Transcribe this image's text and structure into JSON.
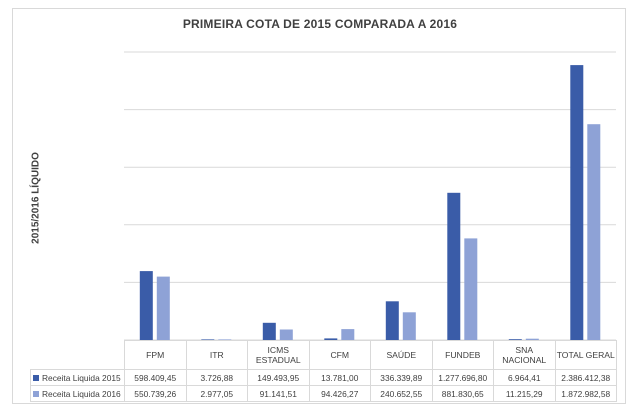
{
  "chart_data": {
    "type": "bar",
    "title": "PRIMEIRA COTA DE 2015 COMPARADA A 2016",
    "xlabel": "",
    "ylabel": "2015/2016 LÍQUIDO",
    "ylim": [
      0,
      2500000
    ],
    "grid": true,
    "legend": "data-table",
    "categories": [
      "FPM",
      "ITR",
      "ICMS ESTADUAL",
      "CFM",
      "SAÚDE",
      "FUNDEB",
      "SNA NACIONAL",
      "TOTAL GERAL"
    ],
    "category_lines": [
      [
        "FPM"
      ],
      [
        "ITR"
      ],
      [
        "ICMS",
        "ESTADUAL"
      ],
      [
        "CFM"
      ],
      [
        "SAÚDE"
      ],
      [
        "FUNDEB"
      ],
      [
        "SNA",
        "NACIONAL"
      ],
      [
        "TOTAL GERAL"
      ]
    ],
    "series": [
      {
        "name": "Receita Liquida 2015",
        "color": "#3a5ca8",
        "values": [
          598409.45,
          3726.88,
          149493.95,
          13781.0,
          336339.89,
          1277696.8,
          6964.41,
          2386412.38
        ],
        "labels": [
          "598.409,45",
          "3.726,88",
          "149.493,95",
          "13.781,00",
          "336.339,89",
          "1.277.696,80",
          "6.964,41",
          "2.386.412,38"
        ]
      },
      {
        "name": "Receita Liquida 2016",
        "color": "#8ea2d6",
        "values": [
          550739.26,
          2977.05,
          91141.51,
          94426.27,
          240652.55,
          881830.65,
          11215.29,
          1872982.58
        ],
        "labels": [
          "550.739,26",
          "2.977,05",
          "91.141,51",
          "94.426,27",
          "240.652,55",
          "881.830,65",
          "11.215,29",
          "1.872.982,58"
        ]
      }
    ]
  },
  "colors": {
    "gridline": "#d9d9d9",
    "text": "#404040"
  }
}
